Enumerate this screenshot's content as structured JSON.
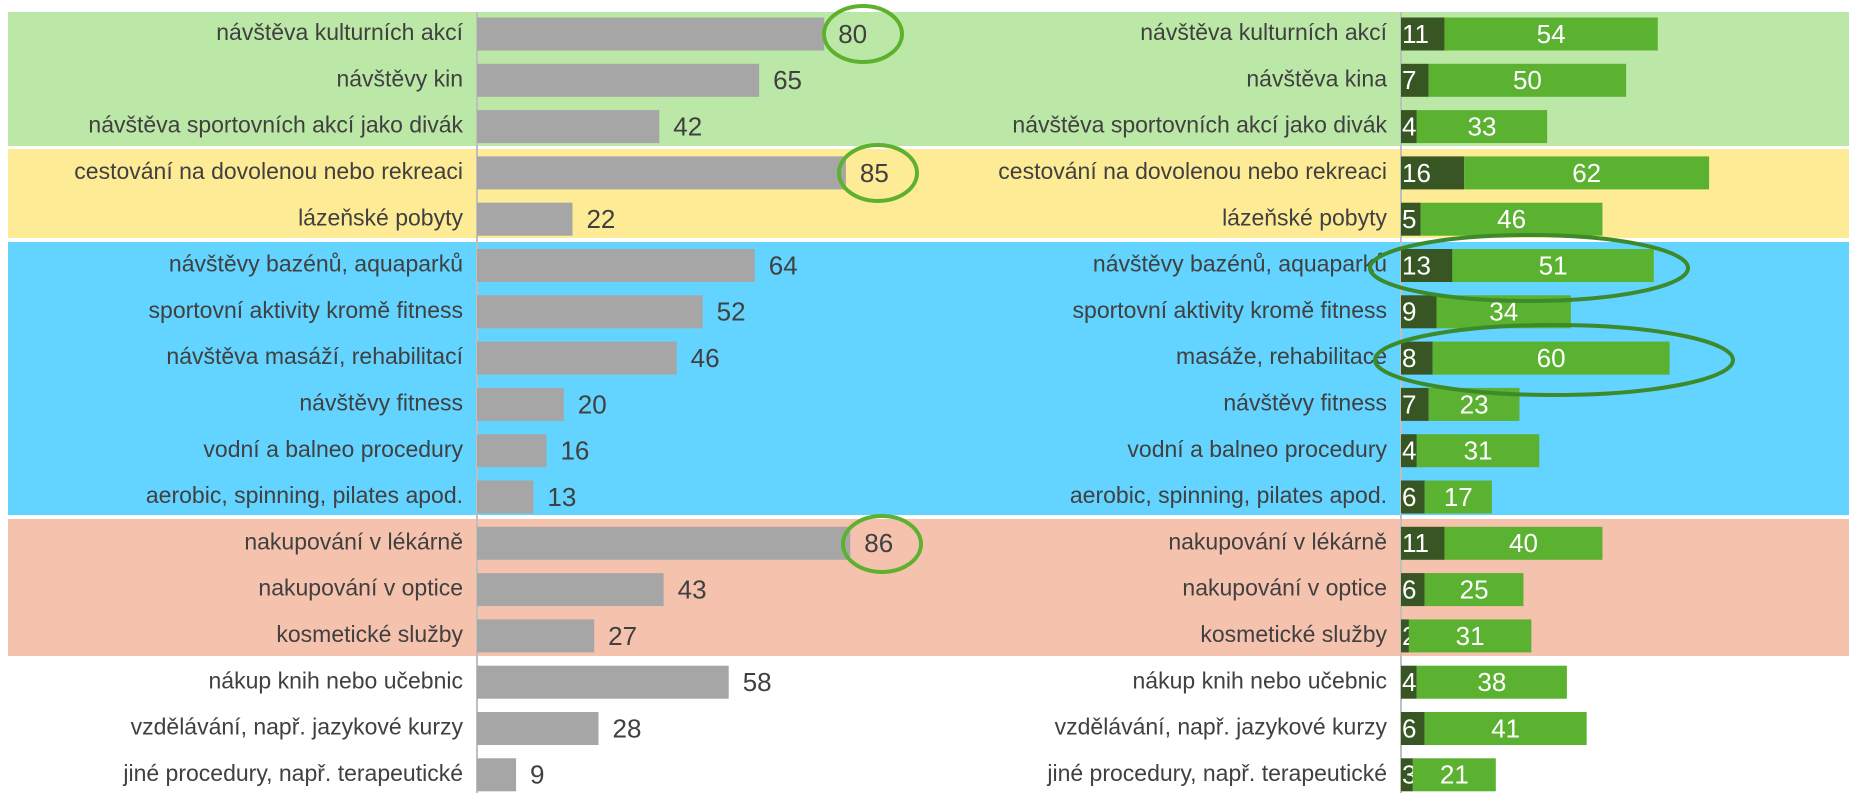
{
  "chart_data": [
    {
      "type": "bar",
      "orientation": "horizontal",
      "color": "#a6a6a6",
      "categories": [
        "návštěva kulturních akcí",
        "návštěvy kin",
        "návštěva sportovních akcí jako divák",
        "cestování na dovolenou nebo rekreaci",
        "lázeňské pobyty",
        "návštěvy bazénů, aquaparků",
        "sportovní aktivity kromě fitness",
        "návštěva masáží, rehabilitací",
        "návštěvy fitness",
        "vodní a balneo procedury",
        "aerobic, spinning, pilates apod.",
        "nakupování v lékárně",
        "nakupování v optice",
        "kosmetické služby",
        "nákup knih nebo učebnic",
        "vzdělávání, např. jazykové kurzy",
        "jiné procedury, např. terapeutické"
      ],
      "values": [
        80,
        65,
        42,
        85,
        22,
        64,
        52,
        46,
        20,
        16,
        13,
        86,
        43,
        27,
        58,
        28,
        9
      ],
      "xlim": [
        0,
        100
      ]
    },
    {
      "type": "stacked_bar",
      "orientation": "horizontal",
      "categories": [
        "návštěva kulturních akcí",
        "návštěva kina",
        "návštěva sportovních akcí jako divák",
        "cestování na dovolenou nebo rekreaci",
        "lázeňské pobyty",
        "návštěvy bazénů, aquaparků",
        "sportovní aktivity kromě fitness",
        "masáže, rehabilitace",
        "návštěvy fitness",
        "vodní a balneo procedury",
        "aerobic, spinning, pilates apod.",
        "nakupování v lékárně",
        "nakupování v optice",
        "kosmetické služby",
        "nákup knih nebo učebnic",
        "vzdělávání, např. jazykové kurzy",
        "jiné procedury, např. terapeutické"
      ],
      "series": [
        {
          "color": "#375623",
          "values": [
            11,
            7,
            4,
            16,
            5,
            13,
            9,
            8,
            7,
            4,
            6,
            11,
            6,
            2,
            4,
            6,
            3
          ]
        },
        {
          "color": "#5bb130",
          "values": [
            54,
            50,
            33,
            62,
            46,
            51,
            34,
            60,
            23,
            31,
            17,
            40,
            25,
            31,
            38,
            41,
            21
          ]
        }
      ],
      "xlim": [
        0,
        100
      ]
    }
  ]
}
